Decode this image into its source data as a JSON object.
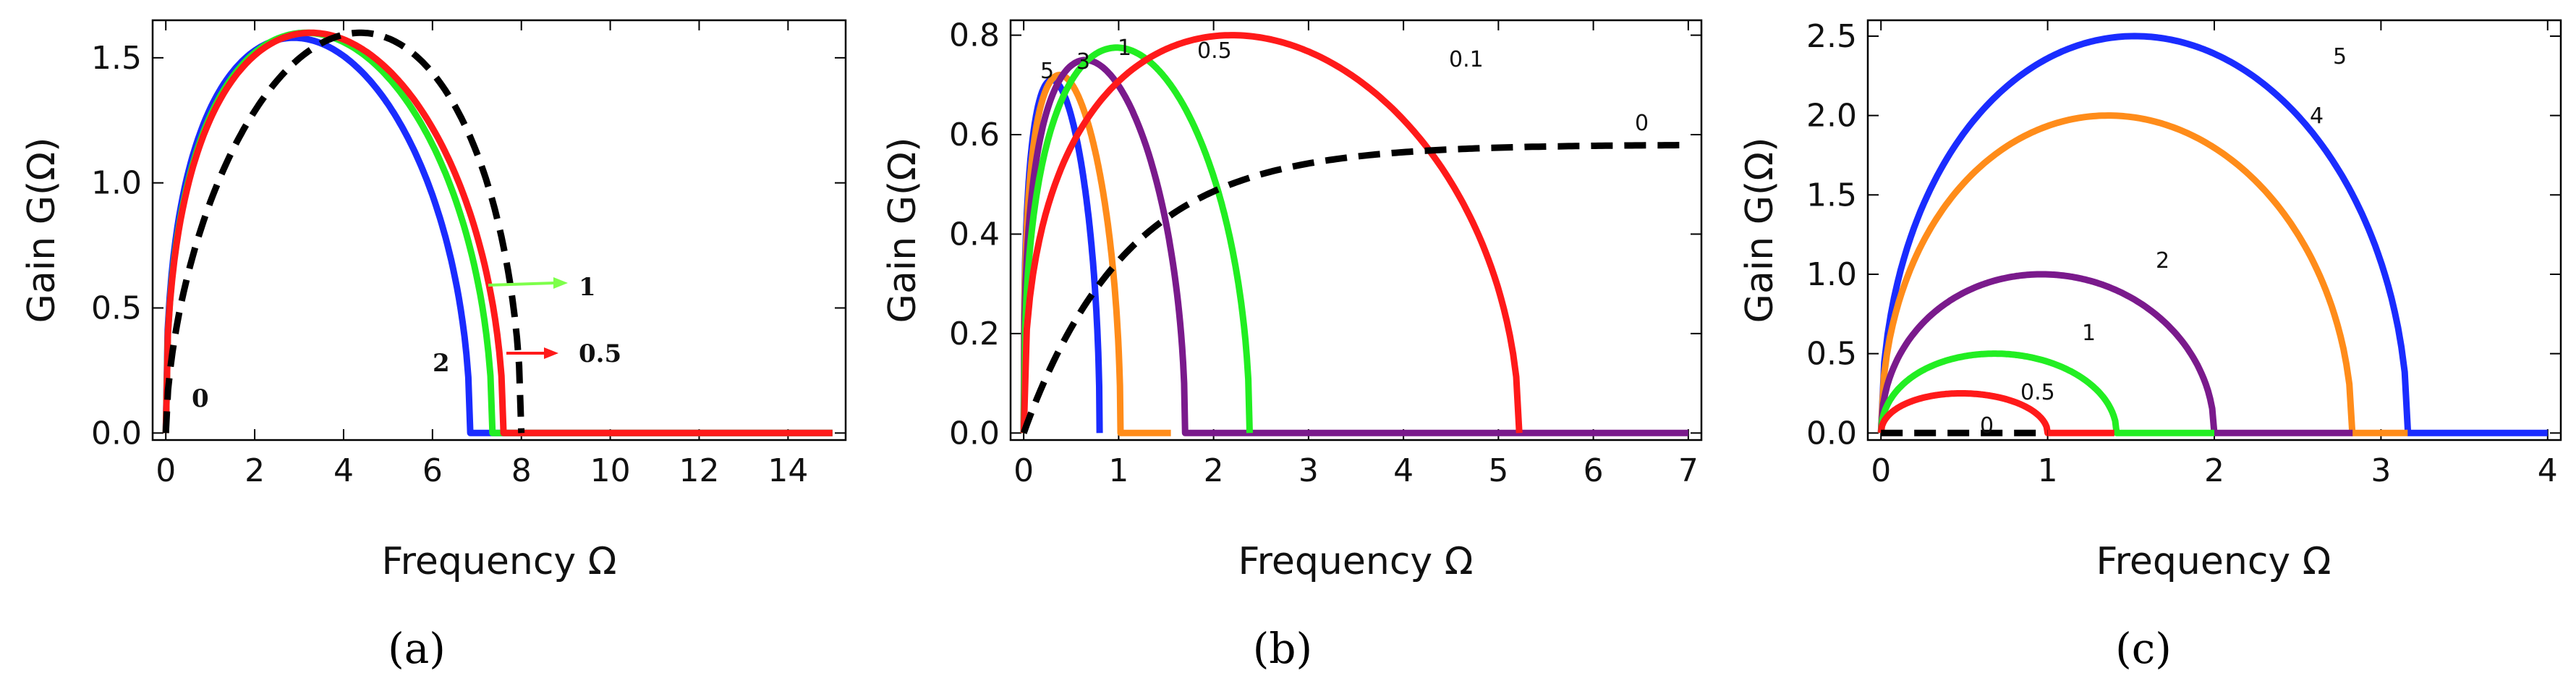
{
  "chart_data": [
    {
      "type": "line",
      "panel_label": "(a)",
      "xlabel": "Frequency Ω",
      "ylabel": "Gain G(Ω)",
      "xlim": [
        0,
        15
      ],
      "ylim": [
        0,
        1.65
      ],
      "xticks": [
        0,
        2,
        4,
        6,
        8,
        10,
        12,
        14
      ],
      "yticks": [
        0.0,
        0.5,
        1.0,
        1.5
      ],
      "xtick_labels": [
        "0",
        "2",
        "4",
        "6",
        "8",
        "10",
        "12",
        "14"
      ],
      "ytick_labels": [
        "0.0",
        "0.5",
        "1.0",
        "1.5"
      ],
      "series": [
        {
          "name": "0",
          "color": "#000000",
          "dashed": true,
          "peak": 1.6,
          "cutoff": 8.0,
          "x_end": 8.0
        },
        {
          "name": "0.5",
          "color": "#ff1a1a",
          "dashed": false,
          "peak": 1.6,
          "cutoff": 7.6,
          "x_end": 15
        },
        {
          "name": "1",
          "color": "#22ee22",
          "dashed": false,
          "peak": 1.6,
          "cutoff": 7.35,
          "x_end": 15
        },
        {
          "name": "2",
          "color": "#1a2cff",
          "dashed": false,
          "peak": 1.58,
          "cutoff": 6.85,
          "x_end": 15
        }
      ],
      "annotations": [
        "0",
        "2",
        "1",
        "0.5"
      ]
    },
    {
      "type": "line",
      "panel_label": "(b)",
      "xlabel": "Frequency Ω",
      "ylabel": "Gain G(Ω)",
      "xlim": [
        0,
        7
      ],
      "ylim": [
        0,
        0.83
      ],
      "xticks": [
        0,
        1,
        2,
        3,
        4,
        5,
        6,
        7
      ],
      "yticks": [
        0.0,
        0.2,
        0.4,
        0.6,
        0.8
      ],
      "xtick_labels": [
        "0",
        "1",
        "2",
        "3",
        "4",
        "5",
        "6",
        "7"
      ],
      "ytick_labels": [
        "0.0",
        "0.2",
        "0.4",
        "0.6",
        "0.8"
      ],
      "series": [
        {
          "name": "0",
          "color": "#000000",
          "dashed": true,
          "saturation": 0.58
        },
        {
          "name": "0.1",
          "color": "#ff1a1a",
          "dashed": false,
          "peak": 0.8,
          "cutoff": 5.22,
          "x_end": 5.22
        },
        {
          "name": "0.5",
          "color": "#22ee22",
          "dashed": false,
          "peak": 0.775,
          "cutoff": 2.38,
          "x_end": 2.38
        },
        {
          "name": "1",
          "color": "#7a1a8c",
          "dashed": false,
          "peak": 0.75,
          "cutoff": 1.7,
          "x_end": 7
        },
        {
          "name": "3",
          "color": "#ff8c1a",
          "dashed": false,
          "peak": 0.72,
          "cutoff": 1.02,
          "x_end": 1.55
        },
        {
          "name": "5",
          "color": "#1a2cff",
          "dashed": false,
          "peak": 0.71,
          "cutoff": 0.8,
          "x_end": 0.8
        }
      ],
      "annotations": [
        "5",
        "3",
        "1",
        "0.5",
        "0.1",
        "0"
      ]
    },
    {
      "type": "line",
      "panel_label": "(c)",
      "xlabel": "Frequency Ω",
      "ylabel": "Gain G(Ω)",
      "xlim": [
        0,
        4
      ],
      "ylim": [
        0,
        2.6
      ],
      "xticks": [
        0,
        1,
        2,
        3,
        4
      ],
      "yticks": [
        0.0,
        0.5,
        1.0,
        1.5,
        2.0,
        2.5
      ],
      "xtick_labels": [
        "0",
        "1",
        "2",
        "3",
        "4"
      ],
      "ytick_labels": [
        "0.0",
        "0.5",
        "1.0",
        "1.5",
        "2.0",
        "2.5"
      ],
      "series": [
        {
          "name": "0",
          "color": "#000000",
          "dashed": true,
          "peak": 0,
          "cutoff": 0,
          "x_end": 1.0
        },
        {
          "name": "0.5",
          "color": "#ff1a1a",
          "dashed": false,
          "peak": 0.25,
          "cutoff": 1.0,
          "x_end": 1.4
        },
        {
          "name": "1",
          "color": "#22ee22",
          "dashed": false,
          "peak": 0.5,
          "cutoff": 1.414,
          "x_end": 2.0
        },
        {
          "name": "2",
          "color": "#7a1a8c",
          "dashed": false,
          "peak": 1.0,
          "cutoff": 2.0,
          "x_end": 2.83
        },
        {
          "name": "4",
          "color": "#ff8c1a",
          "dashed": false,
          "peak": 2.0,
          "cutoff": 2.828,
          "x_end": 3.16
        },
        {
          "name": "5",
          "color": "#1a2cff",
          "dashed": false,
          "peak": 2.5,
          "cutoff": 3.162,
          "x_end": 4
        }
      ],
      "annotations": [
        "0",
        "0.5",
        "1",
        "2",
        "4",
        "5"
      ]
    }
  ]
}
